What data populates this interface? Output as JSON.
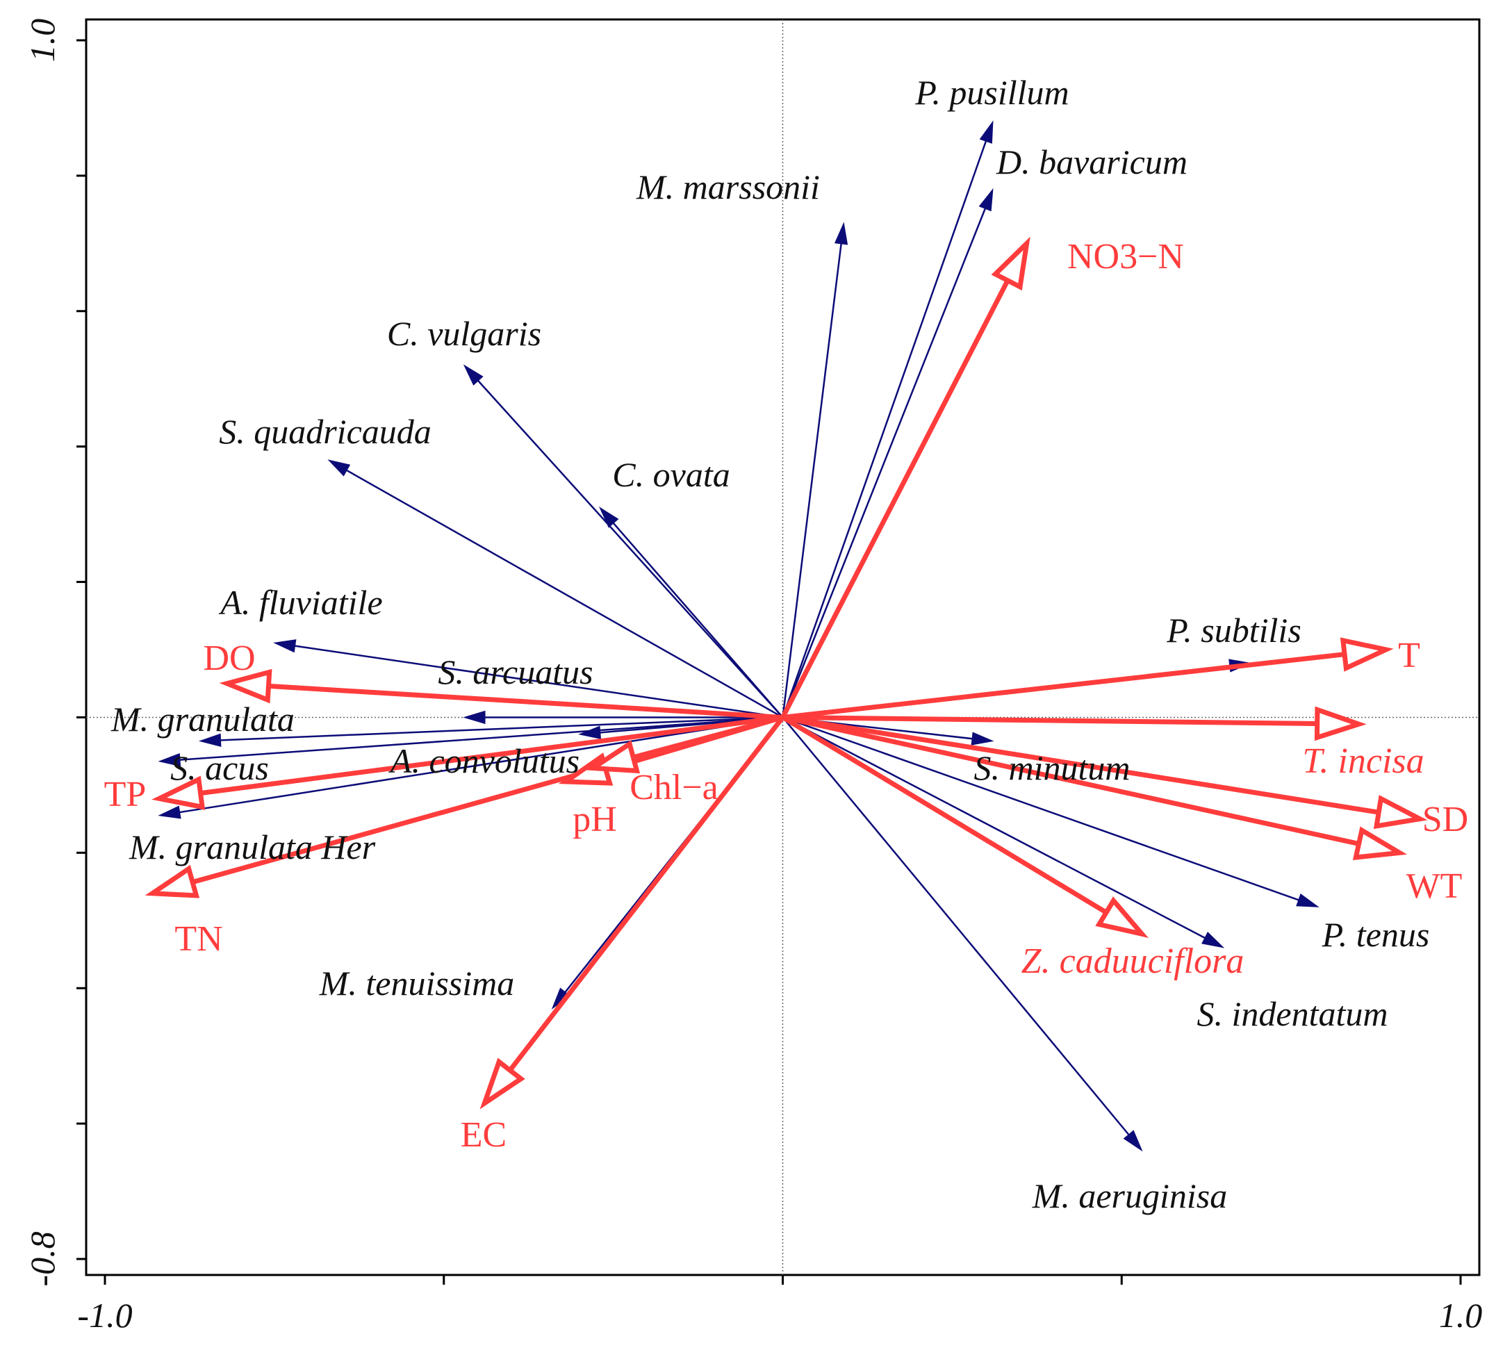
{
  "chart_data": {
    "type": "scatter",
    "subtype": "rda-biplot",
    "title": "",
    "xlabel": "",
    "ylabel": "",
    "xlim": [
      -1.0,
      1.0
    ],
    "ylim": [
      -0.8,
      1.0
    ],
    "x_ticks": [
      -1.0,
      -0.5,
      0.0,
      0.5,
      1.0
    ],
    "y_ticks": [
      -0.8,
      -0.6,
      -0.4,
      -0.2,
      0.0,
      0.2,
      0.4,
      0.6,
      0.8,
      1.0
    ],
    "x_tick_labels": [
      "-1.0",
      "",
      "",
      "",
      "1.0"
    ],
    "y_tick_labels": [
      "-0.8",
      "",
      "",
      "",
      "",
      "",
      "",
      "",
      "",
      "1.0"
    ],
    "colors": {
      "species": "#0c0c78",
      "environment": "#ff3c3c",
      "text": "#111111"
    },
    "species": [
      {
        "name": "P. pusillum",
        "x": 0.31,
        "y": 0.88
      },
      {
        "name": "D. bavaricum",
        "x": 0.31,
        "y": 0.78
      },
      {
        "name": "M. marssonii",
        "x": 0.09,
        "y": 0.73
      },
      {
        "name": "C. vulgaris",
        "x": -0.47,
        "y": 0.52
      },
      {
        "name": "S. quadricauda",
        "x": -0.67,
        "y": 0.38
      },
      {
        "name": "C. ovata",
        "x": -0.27,
        "y": 0.31
      },
      {
        "name": "A. fluviatile",
        "x": -0.75,
        "y": 0.11
      },
      {
        "name": "S. arcuatus",
        "x": -0.47,
        "y": 0.0
      },
      {
        "name": "M. granulata",
        "x": -0.86,
        "y": -0.035
      },
      {
        "name": "A. convolutus",
        "x": -0.3,
        "y": -0.025
      },
      {
        "name": "S. acus",
        "x": -0.92,
        "y": -0.065
      },
      {
        "name": "M. granulata Her",
        "x": -0.92,
        "y": -0.145
      },
      {
        "name": "M. tenuissima",
        "x": -0.34,
        "y": -0.43
      },
      {
        "name": "M. aeruginisa",
        "x": 0.53,
        "y": -0.64
      },
      {
        "name": "S. indentatum",
        "x": 0.65,
        "y": -0.34
      },
      {
        "name": "P. tenus",
        "x": 0.79,
        "y": -0.28
      },
      {
        "name": "S. minutum",
        "x": 0.31,
        "y": -0.035
      },
      {
        "name": "P. subtilis",
        "x": 0.69,
        "y": 0.08
      }
    ],
    "environment": [
      {
        "name": "NO3−N",
        "x": 0.36,
        "y": 0.7
      },
      {
        "name": "T",
        "x": 0.89,
        "y": 0.1
      },
      {
        "name": "T. incisa",
        "x": 0.85,
        "y": -0.01
      },
      {
        "name": "SD",
        "x": 0.94,
        "y": -0.15
      },
      {
        "name": "WT",
        "x": 0.91,
        "y": -0.2
      },
      {
        "name": "Z. caduuciflora",
        "x": 0.53,
        "y": -0.32
      },
      {
        "name": "EC",
        "x": -0.44,
        "y": -0.57
      },
      {
        "name": "TN",
        "x": -0.93,
        "y": -0.26
      },
      {
        "name": "TP",
        "x": -0.92,
        "y": -0.12
      },
      {
        "name": "DO",
        "x": -0.82,
        "y": 0.05
      },
      {
        "name": "pH",
        "x": -0.32,
        "y": -0.095
      },
      {
        "name": "Chl−a",
        "x": -0.28,
        "y": -0.075
      }
    ]
  }
}
